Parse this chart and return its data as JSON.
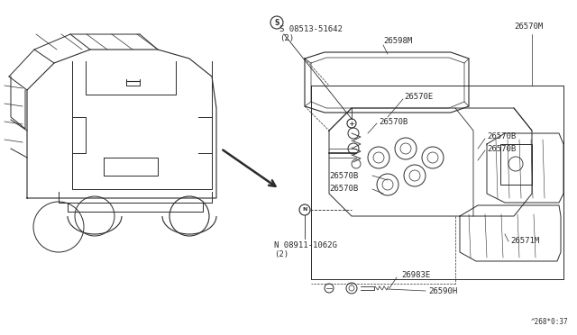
{
  "bg_color": "#ffffff",
  "line_color": "#2a2a2a",
  "text_color": "#2a2a2a",
  "fig_width": 6.4,
  "fig_height": 3.72,
  "dpi": 100,
  "footer_text": "^268*0:37",
  "s_bolt_label": "S 08513-51642\n(2)",
  "n_bolt_label": "N 08911-1062G\n(2)",
  "label_26598M": "26598M",
  "label_26570M": "26570M",
  "label_26570E": "26570E",
  "label_26570B": "26570B",
  "label_26571M": "26571M",
  "label_26983E": "26983E",
  "label_26590H": "26590H"
}
